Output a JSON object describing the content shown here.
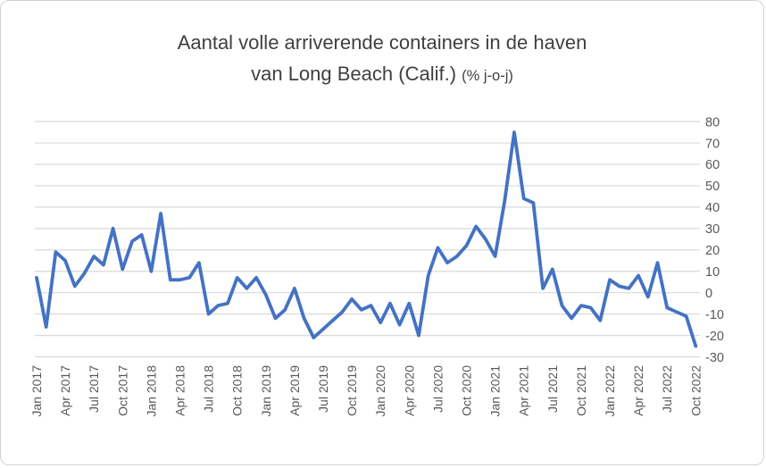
{
  "chart": {
    "title_line1": "Aantal volle arriverende containers in de haven",
    "title_line2_main": "van Long Beach (Calif.) ",
    "title_line2_suffix": "(% j-o-j)",
    "colors": {
      "line": "#4472C4",
      "gridline": "#D9D9D9",
      "tick_label": "#595959",
      "title": "#404040",
      "border": "#D3D3D3"
    },
    "y_ticks": [
      80,
      70,
      60,
      50,
      40,
      30,
      20,
      10,
      0,
      -10,
      -20,
      -30
    ],
    "x_tick_labels": [
      "Jan 2017",
      "Apr 2017",
      "Jul 2017",
      "Oct 2017",
      "Jan 2018",
      "Apr 2018",
      "Jul 2018",
      "Oct 2018",
      "Jan 2019",
      "Apr 2019",
      "Jul 2019",
      "Oct 2019",
      "Jan 2020",
      "Apr 2020",
      "Jul 2020",
      "Oct 2020",
      "Jan 2021",
      "Apr 2021",
      "Jul 2021",
      "Oct 2021",
      "Jan 2022",
      "Apr 2022",
      "Jul 2022",
      "Oct 2022"
    ],
    "x_tick_month_step": 3
  },
  "chart_data": {
    "type": "line",
    "title": "Aantal volle arriverende containers in de haven van Long Beach (Calif.) (% j-o-j)",
    "xlabel": "",
    "ylabel": "",
    "x_start": "Jan 2017",
    "x_end": "Oct 2022",
    "x_frequency": "monthly",
    "ylim": [
      -30,
      80
    ],
    "grid": "horizontal",
    "legend": "none",
    "values": [
      7,
      -16,
      19,
      15,
      3,
      9,
      17,
      13,
      30,
      11,
      24,
      27,
      10,
      37,
      6,
      6,
      7,
      14,
      -10,
      -6,
      -5,
      7,
      2,
      7,
      -1,
      -12,
      -8,
      2,
      -12,
      -21,
      -17,
      -13,
      -9,
      -3,
      -8,
      -6,
      -14,
      -5,
      -15,
      -5,
      -20,
      8,
      21,
      14,
      17,
      22,
      31,
      25,
      17,
      43,
      75,
      44,
      42,
      2,
      11,
      -6,
      -12,
      -6,
      -7,
      -13,
      6,
      3,
      2,
      8,
      -2,
      14,
      -7,
      -9,
      -11,
      -25
    ]
  }
}
